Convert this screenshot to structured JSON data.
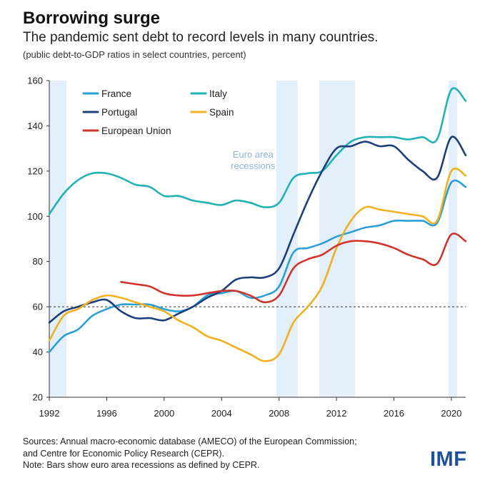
{
  "header": {
    "title": "Borrowing surge",
    "subtitle": "The pandemic sent debt to record levels in many countries.",
    "note": "(public debt-to-GDP ratios in select countries, percent)"
  },
  "footer": {
    "sources_lines": [
      "Sources: Annual macro-economic database (AMECO) of the European Commission;",
      "and Centre for Economic Policy Research (CEPR).",
      "Note: Bars show euro area recessions as defined by CEPR."
    ],
    "logo": "IMF"
  },
  "chart_data": {
    "type": "line",
    "xlim": [
      1992,
      2021
    ],
    "ylim": [
      20,
      160
    ],
    "x_ticks": [
      1992,
      1996,
      2000,
      2004,
      2008,
      2012,
      2016,
      2020
    ],
    "y_ticks": [
      20,
      40,
      60,
      80,
      100,
      120,
      140,
      160
    ],
    "reference_line": {
      "y": 60,
      "style": "dashed"
    },
    "recessions": {
      "label": "Euro area recessions",
      "label_lines": [
        "Euro area",
        "recessions"
      ],
      "periods": [
        [
          1992.0,
          1993.2
        ],
        [
          2007.8,
          2009.3
        ],
        [
          2010.8,
          2013.3
        ],
        [
          2019.8,
          2020.4
        ]
      ]
    },
    "legend": {
      "placement": "top-left",
      "columns": 2
    },
    "series": [
      {
        "name": "France",
        "color": "#2a9fd6",
        "x": [
          1992,
          1993,
          1994,
          1995,
          1996,
          1997,
          1998,
          1999,
          2000,
          2001,
          2002,
          2003,
          2004,
          2005,
          2006,
          2007,
          2008,
          2009,
          2010,
          2011,
          2012,
          2013,
          2014,
          2015,
          2016,
          2017,
          2018,
          2019,
          2020,
          2021
        ],
        "values": [
          40,
          47,
          50,
          56,
          59,
          61,
          61,
          61,
          59,
          58,
          60,
          65,
          66,
          67,
          64,
          65,
          69,
          84,
          86,
          88,
          91,
          93,
          95,
          96,
          98,
          98,
          98,
          97,
          115,
          113
        ]
      },
      {
        "name": "Italy",
        "color": "#20b2b5",
        "x": [
          1992,
          1993,
          1994,
          1995,
          1996,
          1997,
          1998,
          1999,
          2000,
          2001,
          2002,
          2003,
          2004,
          2005,
          2006,
          2007,
          2008,
          2009,
          2010,
          2011,
          2012,
          2013,
          2014,
          2015,
          2016,
          2017,
          2018,
          2019,
          2020,
          2021
        ],
        "values": [
          101,
          110,
          116,
          119,
          119,
          117,
          114,
          113,
          109,
          109,
          107,
          106,
          105,
          107,
          106,
          104,
          106,
          117,
          119,
          120,
          127,
          133,
          135,
          135,
          135,
          134,
          135,
          134,
          156,
          151
        ]
      },
      {
        "name": "Portugal",
        "color": "#1b3f7a",
        "x": [
          1992,
          1993,
          1994,
          1995,
          1996,
          1997,
          1998,
          1999,
          2000,
          2001,
          2002,
          2003,
          2004,
          2005,
          2006,
          2007,
          2008,
          2009,
          2010,
          2011,
          2012,
          2013,
          2014,
          2015,
          2016,
          2017,
          2018,
          2019,
          2020,
          2021
        ],
        "values": [
          53,
          58,
          60,
          62,
          63,
          58,
          55,
          55,
          54,
          57,
          60,
          64,
          67,
          72,
          73,
          73,
          77,
          92,
          107,
          120,
          130,
          131,
          133,
          131,
          131,
          125,
          120,
          117,
          135,
          127
        ]
      },
      {
        "name": "Spain",
        "color": "#f2b01f",
        "x": [
          1992,
          1993,
          1994,
          1995,
          1996,
          1997,
          1998,
          1999,
          2000,
          2001,
          2002,
          2003,
          2004,
          2005,
          2006,
          2007,
          2008,
          2009,
          2010,
          2011,
          2012,
          2013,
          2014,
          2015,
          2016,
          2017,
          2018,
          2019,
          2020,
          2021
        ],
        "values": [
          45,
          56,
          59,
          63,
          65,
          64,
          62,
          60,
          58,
          54,
          51,
          47,
          45,
          42,
          39,
          36,
          39,
          53,
          60,
          69,
          86,
          98,
          104,
          103,
          102,
          101,
          100,
          98,
          120,
          118
        ]
      },
      {
        "name": "European Union",
        "color": "#d1342c",
        "x": [
          1997,
          1998,
          1999,
          2000,
          2001,
          2002,
          2003,
          2004,
          2005,
          2006,
          2007,
          2008,
          2009,
          2010,
          2011,
          2012,
          2013,
          2014,
          2015,
          2016,
          2017,
          2018,
          2019,
          2020,
          2021
        ],
        "values": [
          71,
          70,
          69,
          66,
          65,
          65,
          66,
          67,
          67,
          65,
          62,
          65,
          77,
          81,
          83,
          87,
          89,
          89,
          88,
          86,
          83,
          81,
          79,
          92,
          89
        ]
      }
    ]
  }
}
